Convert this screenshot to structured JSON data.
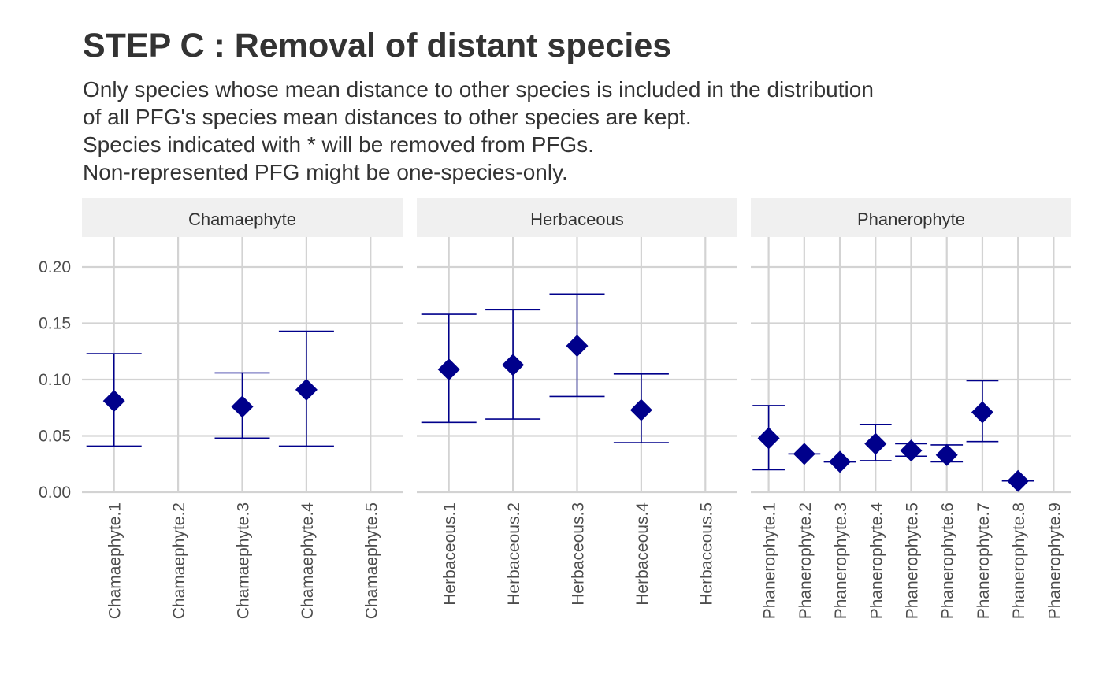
{
  "title": "STEP C : Removal of distant species",
  "subtitle_lines": [
    "Only species whose mean distance to other species is included in the distribution",
    "of all PFG's species mean distances to other species are kept.",
    "Species indicated with * will be removed from PFGs.",
    "Non-represented PFG might be one-species-only."
  ],
  "colors": {
    "point": "#00008B",
    "errorbar": "#00008B",
    "grid": "#d3d3d3",
    "strip_background": "#f0f0f0",
    "text": "#333333",
    "axis_text": "#4d4d4d"
  },
  "chart_data": {
    "type": "scatter",
    "marker": "diamond",
    "with_error_bars": true,
    "facet_by": "life form",
    "grid": true,
    "legend": "none",
    "xlabel": "",
    "ylabel": "",
    "ylim": [
      0,
      0.21
    ],
    "y_ticks": [
      "0.00",
      "0.05",
      "0.10",
      "0.15",
      "0.20"
    ],
    "facets": [
      {
        "name": "Chamaephyte",
        "categories": [
          "Chamaephyte.1",
          "Chamaephyte.2",
          "Chamaephyte.3",
          "Chamaephyte.4",
          "Chamaephyte.5"
        ],
        "points": [
          {
            "category": "Chamaephyte.1",
            "mean": 0.081,
            "lower": 0.041,
            "upper": 0.123
          },
          {
            "category": "Chamaephyte.3",
            "mean": 0.076,
            "lower": 0.048,
            "upper": 0.106
          },
          {
            "category": "Chamaephyte.4",
            "mean": 0.091,
            "lower": 0.041,
            "upper": 0.143
          }
        ]
      },
      {
        "name": "Herbaceous",
        "categories": [
          "Herbaceous.1",
          "Herbaceous.2",
          "Herbaceous.3",
          "Herbaceous.4",
          "Herbaceous.5"
        ],
        "points": [
          {
            "category": "Herbaceous.1",
            "mean": 0.109,
            "lower": 0.062,
            "upper": 0.158
          },
          {
            "category": "Herbaceous.2",
            "mean": 0.113,
            "lower": 0.065,
            "upper": 0.162
          },
          {
            "category": "Herbaceous.3",
            "mean": 0.13,
            "lower": 0.085,
            "upper": 0.176
          },
          {
            "category": "Herbaceous.4",
            "mean": 0.073,
            "lower": 0.044,
            "upper": 0.105
          }
        ]
      },
      {
        "name": "Phanerophyte",
        "categories": [
          "Phanerophyte.1",
          "Phanerophyte.2",
          "Phanerophyte.3",
          "Phanerophyte.4",
          "Phanerophyte.5",
          "Phanerophyte.6",
          "Phanerophyte.7",
          "Phanerophyte.8",
          "Phanerophyte.9"
        ],
        "points": [
          {
            "category": "Phanerophyte.1",
            "mean": 0.048,
            "lower": 0.02,
            "upper": 0.077
          },
          {
            "category": "Phanerophyte.2",
            "mean": 0.034,
            "lower": 0.034,
            "upper": 0.034
          },
          {
            "category": "Phanerophyte.3",
            "mean": 0.027,
            "lower": 0.027,
            "upper": 0.027
          },
          {
            "category": "Phanerophyte.4",
            "mean": 0.043,
            "lower": 0.028,
            "upper": 0.06
          },
          {
            "category": "Phanerophyte.5",
            "mean": 0.037,
            "lower": 0.032,
            "upper": 0.043
          },
          {
            "category": "Phanerophyte.6",
            "mean": 0.033,
            "lower": 0.027,
            "upper": 0.042
          },
          {
            "category": "Phanerophyte.7",
            "mean": 0.071,
            "lower": 0.045,
            "upper": 0.099
          },
          {
            "category": "Phanerophyte.8",
            "mean": 0.01,
            "lower": 0.01,
            "upper": 0.01
          }
        ]
      }
    ]
  }
}
